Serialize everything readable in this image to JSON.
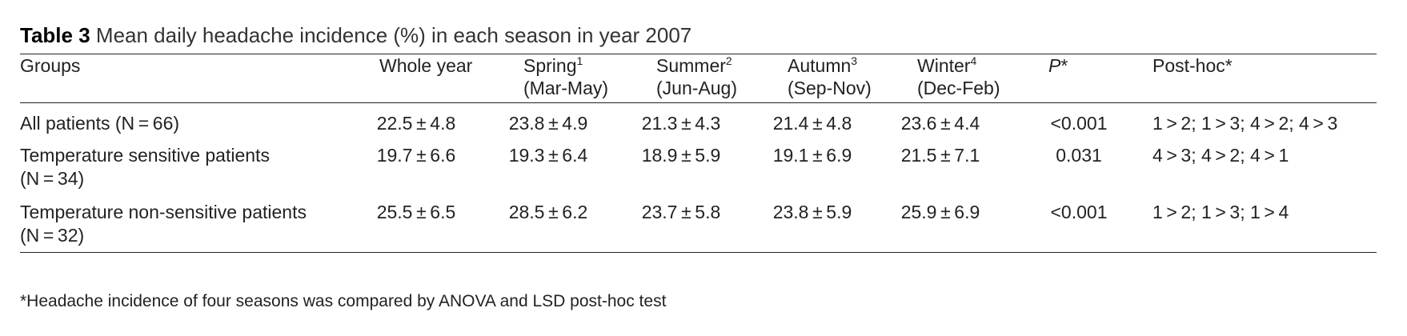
{
  "caption": {
    "label": "Table 3",
    "text": "Mean daily headache incidence (%) in each season in year 2007"
  },
  "headers": {
    "groups": "Groups",
    "whole_year": "Whole year",
    "spring": {
      "name": "Spring",
      "sup": "1",
      "months": "(Mar-May)"
    },
    "summer": {
      "name": "Summer",
      "sup": "2",
      "months": "(Jun-Aug)"
    },
    "autumn": {
      "name": "Autumn",
      "sup": "3",
      "months": "(Sep-Nov)"
    },
    "winter": {
      "name": "Winter",
      "sup": "4",
      "months": "(Dec-Feb)"
    },
    "p": "P",
    "p_star": "*",
    "posthoc": "Post-hoc*"
  },
  "rows": [
    {
      "group_line1": "All patients (N = 66)",
      "group_line2": "",
      "whole_year": "22.5 ± 4.8",
      "spring": "23.8 ± 4.9",
      "summer": "21.3 ± 4.3",
      "autumn": "21.4 ± 4.8",
      "winter": "23.6 ± 4.4",
      "p": "<0.001",
      "posthoc": "1 > 2; 1 > 3; 4 > 2; 4 > 3"
    },
    {
      "group_line1": "Temperature sensitive patients",
      "group_line2": "(N = 34)",
      "whole_year": "19.7 ± 6.6",
      "spring": "19.3 ± 6.4",
      "summer": "18.9 ± 5.9",
      "autumn": "19.1 ± 6.9",
      "winter": "21.5 ± 7.1",
      "p": "0.031",
      "posthoc": "4 > 3; 4 > 2; 4 > 1"
    },
    {
      "group_line1": "Temperature non-sensitive patients",
      "group_line2": "(N = 32)",
      "whole_year": "25.5 ± 6.5",
      "spring": "28.5 ± 6.2",
      "summer": "23.7 ± 5.8",
      "autumn": "23.8 ± 5.9",
      "winter": "25.9 ± 6.9",
      "p": "<0.001",
      "posthoc": "1 > 2; 1 > 3; 1 > 4"
    }
  ],
  "footnote": "*Headache incidence of four seasons was compared by ANOVA and LSD post-hoc test"
}
